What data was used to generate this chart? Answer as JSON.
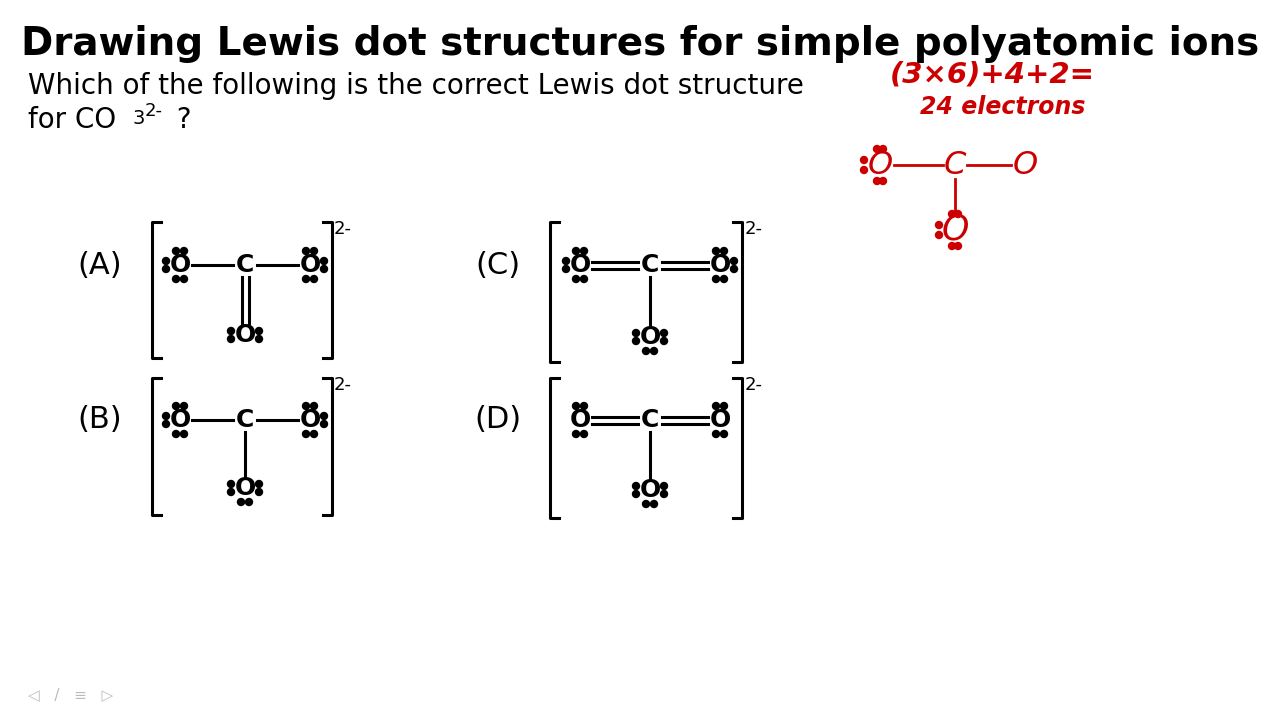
{
  "title": "Drawing Lewis dot structures for simple polyatomic ions",
  "question_line1": "Which of the following is the correct Lewis dot structure",
  "question_line2": "for CO",
  "bg_color": "#ffffff",
  "text_color": "#000000",
  "red_color": "#cc0000",
  "title_fontsize": 28,
  "question_fontsize": 20,
  "label_fontsize": 22,
  "dot_size": 3.5,
  "bond_lw": 2.2,
  "bracket_lw": 2.2
}
